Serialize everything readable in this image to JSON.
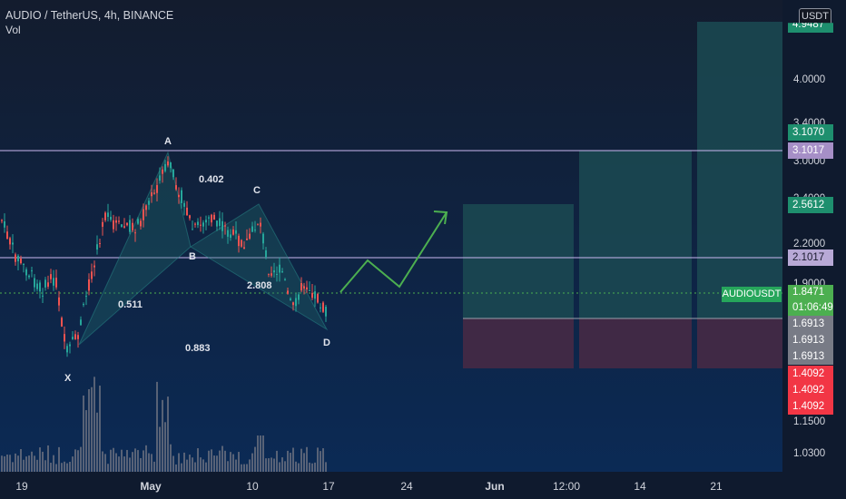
{
  "header": {
    "title": "AUDIO / TetherUS, 4h, BINANCE",
    "volume_label": "Vol"
  },
  "currency_button": "USDT",
  "price_axis": [
    "4.0000",
    "3.4000",
    "3.0000",
    "2.4000",
    "2.2000",
    "1.9000",
    "1.1500",
    "1.0300"
  ],
  "price_tags": [
    {
      "text": "4.9487",
      "color": "#1e8f6e"
    },
    {
      "text": "3.1070",
      "color": "#1e8f6e"
    },
    {
      "text": "3.1017",
      "color": "#a68fc7"
    },
    {
      "text": "2.5612",
      "color": "#1e8f6e"
    },
    {
      "text": "2.1017",
      "color": "#b8a9d6"
    },
    {
      "text": "1.8471",
      "color": "#4caf50"
    },
    {
      "text": "01:06:49",
      "color": "#4caf50"
    },
    {
      "text": "1.6913",
      "color": "#787b86"
    },
    {
      "text": "1.6913",
      "color": "#787b86"
    },
    {
      "text": "1.6913",
      "color": "#787b86"
    },
    {
      "text": "1.4092",
      "color": "#f23645"
    },
    {
      "text": "1.4092",
      "color": "#f23645"
    },
    {
      "text": "1.4092",
      "color": "#f23645"
    }
  ],
  "symbol_tag": "AUDIOUSDT",
  "time_axis": [
    {
      "text": "19",
      "bold": false
    },
    {
      "text": "May",
      "bold": true
    },
    {
      "text": "10",
      "bold": false
    },
    {
      "text": "17",
      "bold": false
    },
    {
      "text": "24",
      "bold": false
    },
    {
      "text": "Jun",
      "bold": true
    },
    {
      "text": "12:00",
      "bold": false
    },
    {
      "text": "14",
      "bold": false
    },
    {
      "text": "21",
      "bold": false
    }
  ],
  "pattern_points": {
    "X": "X",
    "A": "A",
    "B": "B",
    "C": "C",
    "D": "D"
  },
  "pattern_ratios": {
    "xab": "0.511",
    "abc": "0.402",
    "bcd": "2.808",
    "xad": "0.883"
  },
  "colors": {
    "background": "#0e1a30",
    "up": "#26a69a",
    "down": "#ef5350",
    "target": "#1a4a52",
    "stop": "#4a2a40",
    "line": "#c9b8f0",
    "projection": "#4caf50"
  }
}
